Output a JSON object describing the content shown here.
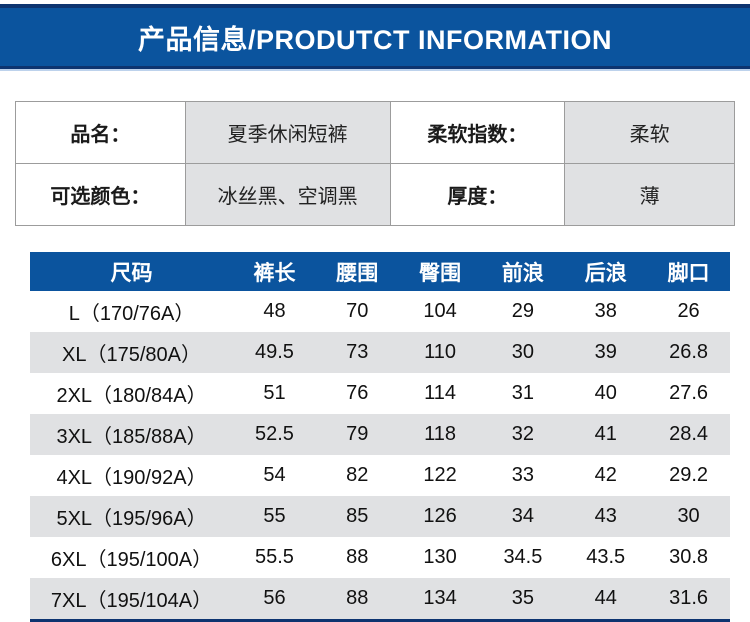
{
  "banner": {
    "title": "产品信息/PRODUTCT INFORMATION",
    "bg_color": "#0b549e",
    "accent_dark": "#0d3470",
    "accent_light": "#bdd2ec"
  },
  "info_table": {
    "label_bg": "#ffffff",
    "value_bg": "#e0e1e3",
    "rows": [
      {
        "label1": "品名：",
        "value1": "夏季休闲短裤",
        "label2": "柔软指数：",
        "value2": "柔软"
      },
      {
        "label1": "可选颜色：",
        "value1": "冰丝黑、空调黑",
        "label2": "厚度：",
        "value2": "薄"
      }
    ]
  },
  "size_table": {
    "header_bg": "#0b549e",
    "alt_row_bg": "#e0e1e3",
    "headers": [
      "尺码",
      "裤长",
      "腰围",
      "臀围",
      "前浪",
      "后浪",
      "脚口"
    ],
    "rows": [
      [
        "L（170/76A）",
        "48",
        "70",
        "104",
        "29",
        "38",
        "26"
      ],
      [
        "XL（175/80A）",
        "49.5",
        "73",
        "110",
        "30",
        "39",
        "26.8"
      ],
      [
        "2XL（180/84A）",
        "51",
        "76",
        "114",
        "31",
        "40",
        "27.6"
      ],
      [
        "3XL（185/88A）",
        "52.5",
        "79",
        "118",
        "32",
        "41",
        "28.4"
      ],
      [
        "4XL（190/92A）",
        "54",
        "82",
        "122",
        "33",
        "42",
        "29.2"
      ],
      [
        "5XL（195/96A）",
        "55",
        "85",
        "126",
        "34",
        "43",
        "30"
      ],
      [
        "6XL（195/100A）",
        "55.5",
        "88",
        "130",
        "34.5",
        "43.5",
        "30.8"
      ],
      [
        "7XL（195/104A）",
        "56",
        "88",
        "134",
        "35",
        "44",
        "31.6"
      ]
    ]
  }
}
